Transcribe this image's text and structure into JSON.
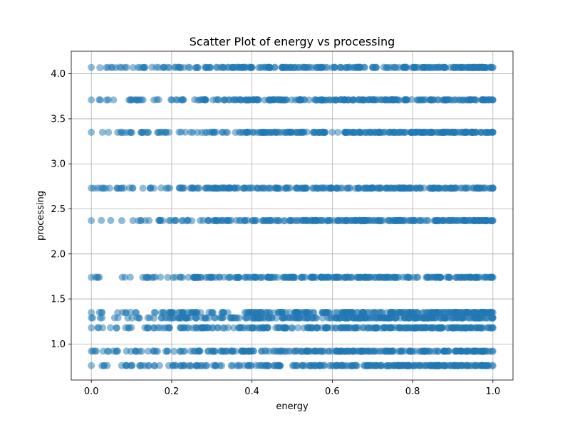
{
  "chart_data": {
    "type": "scatter",
    "title": "Scatter Plot of energy vs processing",
    "xlabel": "energy",
    "ylabel": "processing",
    "xlim": [
      -0.05,
      1.05
    ],
    "ylim": [
      0.6,
      4.25
    ],
    "xticks": [
      0.0,
      0.2,
      0.4,
      0.6,
      0.8,
      1.0
    ],
    "xtick_labels": [
      "0.0",
      "0.2",
      "0.4",
      "0.6",
      "0.8",
      "1.0"
    ],
    "yticks": [
      1.0,
      1.5,
      2.0,
      2.5,
      3.0,
      3.5,
      4.0
    ],
    "ytick_labels": [
      "1.0",
      "1.5",
      "2.0",
      "2.5",
      "3.0",
      "3.5",
      "4.0"
    ],
    "grid": true,
    "point_color": "#1f77b4",
    "point_alpha": 0.5,
    "series": [
      {
        "x_range": [
          0.0,
          1.0
        ],
        "y_levels": [
          0.76,
          0.92,
          1.18,
          1.29,
          1.35,
          1.74,
          2.37,
          2.73,
          3.35,
          3.71,
          4.07
        ],
        "density": [
          0.95,
          0.7,
          0.75,
          0.95,
          0.95,
          0.75,
          0.85,
          0.8,
          0.9,
          0.85,
          0.9
        ]
      }
    ]
  }
}
